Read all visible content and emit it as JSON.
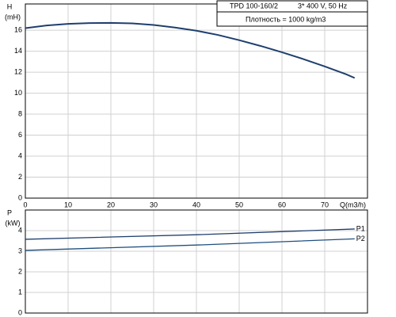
{
  "chart_data": [
    {
      "type": "line",
      "ylabel": "H",
      "yunit": "(mH)",
      "xlabel": "Q(m3/h)",
      "model": "TPD 100-160/2",
      "supply": "3* 400 V, 50 Hz",
      "note": "Плотность = 1000 kg/m3",
      "x": [
        0,
        5,
        10,
        15,
        20,
        25,
        30,
        35,
        40,
        45,
        50,
        55,
        60,
        65,
        70,
        75,
        77
      ],
      "series": [
        {
          "color": "#1f3f6e",
          "values": [
            16.2,
            16.45,
            16.6,
            16.68,
            16.7,
            16.65,
            16.5,
            16.25,
            15.95,
            15.55,
            15.05,
            14.5,
            13.9,
            13.25,
            12.55,
            11.8,
            11.45
          ]
        }
      ],
      "xlim": [
        0,
        80
      ],
      "xticks": [
        0,
        10,
        20,
        30,
        40,
        50,
        60,
        70
      ],
      "ylim": [
        0,
        18.5
      ],
      "yticks": [
        0,
        2,
        4,
        6,
        8,
        10,
        12,
        14,
        16
      ],
      "grid": true,
      "show_xtick_labels": true
    },
    {
      "type": "line",
      "ylabel": "P",
      "yunit": "(kW)",
      "x": [
        0,
        40,
        77
      ],
      "series": [
        {
          "name": "P1",
          "color": "#1f3f6e",
          "values": [
            3.58,
            3.8,
            4.08
          ]
        },
        {
          "name": "P2",
          "color": "#1f4f7e",
          "values": [
            3.04,
            3.3,
            3.6
          ]
        }
      ],
      "xlim": [
        0,
        80
      ],
      "xticks": [
        0,
        10,
        20,
        30,
        40,
        50,
        60,
        70
      ],
      "ylim": [
        0,
        5
      ],
      "yticks": [
        0,
        1,
        2,
        3,
        4
      ],
      "grid": true,
      "show_xtick_labels": false
    }
  ]
}
